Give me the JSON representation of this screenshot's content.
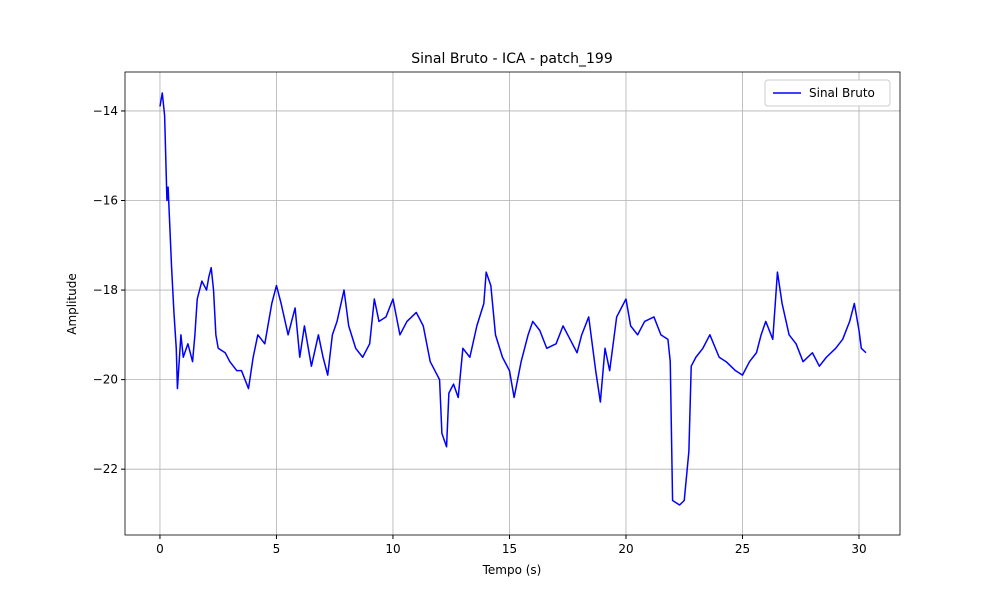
{
  "chart_data": {
    "type": "line",
    "title": "Sinal Bruto - ICA - patch_199",
    "x_label": "Tempo (s)",
    "y_label": "Amplitude",
    "x": [
      0,
      0.1,
      0.2,
      0.3,
      0.35,
      0.5,
      0.6,
      0.7,
      0.75,
      0.9,
      1.0,
      1.2,
      1.4,
      1.5,
      1.6,
      1.8,
      2.0,
      2.1,
      2.2,
      2.3,
      2.4,
      2.5,
      2.8,
      3.0,
      3.3,
      3.5,
      3.8,
      4.0,
      4.2,
      4.5,
      4.8,
      5.0,
      5.2,
      5.5,
      5.8,
      6.0,
      6.2,
      6.5,
      6.8,
      7.0,
      7.2,
      7.4,
      7.6,
      7.9,
      8.1,
      8.4,
      8.7,
      9.0,
      9.2,
      9.4,
      9.7,
      10.0,
      10.3,
      10.6,
      11.0,
      11.3,
      11.6,
      11.8,
      12.0,
      12.1,
      12.3,
      12.4,
      12.6,
      12.8,
      13.0,
      13.3,
      13.6,
      13.9,
      14.0,
      14.2,
      14.4,
      14.7,
      15.0,
      15.2,
      15.5,
      15.8,
      16.0,
      16.3,
      16.6,
      17.0,
      17.3,
      17.6,
      17.9,
      18.1,
      18.4,
      18.7,
      18.9,
      19.1,
      19.3,
      19.6,
      20.0,
      20.2,
      20.5,
      20.8,
      21.2,
      21.5,
      21.8,
      21.9,
      22.0,
      22.3,
      22.5,
      22.7,
      22.8,
      23.0,
      23.3,
      23.6,
      24.0,
      24.3,
      24.7,
      25.0,
      25.3,
      25.6,
      25.8,
      26.0,
      26.3,
      26.5,
      26.7,
      27.0,
      27.3,
      27.6,
      28.0,
      28.3,
      28.6,
      29.0,
      29.3,
      29.6,
      29.8,
      30.0,
      30.1,
      30.3
    ],
    "series": [
      {
        "name": "Sinal Bruto",
        "color": "#0000ff",
        "values": [
          -13.9,
          -13.6,
          -14.1,
          -16.0,
          -15.7,
          -17.5,
          -18.5,
          -19.3,
          -20.2,
          -19.0,
          -19.5,
          -19.2,
          -19.6,
          -19.0,
          -18.2,
          -17.8,
          -18.0,
          -17.7,
          -17.5,
          -18.0,
          -19.0,
          -19.3,
          -19.4,
          -19.6,
          -19.8,
          -19.8,
          -20.2,
          -19.5,
          -19.0,
          -19.2,
          -18.3,
          -17.9,
          -18.3,
          -19.0,
          -18.4,
          -19.5,
          -18.8,
          -19.7,
          -19.0,
          -19.5,
          -19.9,
          -19.0,
          -18.7,
          -18.0,
          -18.8,
          -19.3,
          -19.5,
          -19.2,
          -18.2,
          -18.7,
          -18.6,
          -18.2,
          -19.0,
          -18.7,
          -18.5,
          -18.8,
          -19.6,
          -19.8,
          -20.0,
          -21.2,
          -21.5,
          -20.3,
          -20.1,
          -20.4,
          -19.3,
          -19.5,
          -18.8,
          -18.3,
          -17.6,
          -17.9,
          -19.0,
          -19.5,
          -19.8,
          -20.4,
          -19.6,
          -19.0,
          -18.7,
          -18.9,
          -19.3,
          -19.2,
          -18.8,
          -19.1,
          -19.4,
          -19.0,
          -18.6,
          -19.8,
          -20.5,
          -19.3,
          -19.8,
          -18.6,
          -18.2,
          -18.8,
          -19.0,
          -18.7,
          -18.6,
          -19.0,
          -19.1,
          -19.6,
          -22.7,
          -22.8,
          -22.7,
          -21.6,
          -19.7,
          -19.5,
          -19.3,
          -19.0,
          -19.5,
          -19.6,
          -19.8,
          -19.9,
          -19.6,
          -19.4,
          -19.0,
          -18.7,
          -19.1,
          -17.6,
          -18.3,
          -19.0,
          -19.2,
          -19.6,
          -19.4,
          -19.7,
          -19.5,
          -19.3,
          -19.1,
          -18.7,
          -18.3,
          -18.9,
          -19.3,
          -19.4
        ]
      }
    ],
    "xlim": [
      -1.5,
      31.76
    ],
    "ylim": [
      -23.47,
      -13.13
    ],
    "xticks": [
      0,
      5,
      10,
      15,
      20,
      25,
      30
    ],
    "yticks": [
      {
        "value": -22,
        "label": "−22"
      },
      {
        "value": -20,
        "label": "−20"
      },
      {
        "value": -18,
        "label": "−18"
      },
      {
        "value": -16,
        "label": "−16"
      },
      {
        "value": -14,
        "label": "−14"
      }
    ],
    "grid": true,
    "legend": "upper right"
  }
}
